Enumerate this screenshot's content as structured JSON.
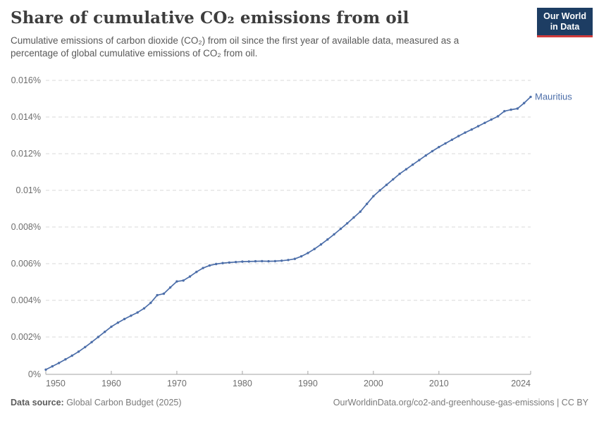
{
  "branding": {
    "logo_line1": "Our World",
    "logo_line2": "in Data",
    "logo_bg": "#1d3d63",
    "logo_stripe": "#cf3b3b"
  },
  "header": {
    "title": "Share of cumulative CO₂ emissions from oil",
    "subtitle_lines": [
      "Cumulative emissions of carbon dioxide (CO₂) from oil since the first year of available data, measured as a",
      "percentage of global cumulative emissions of CO₂ from oil."
    ]
  },
  "chart_data": {
    "type": "line",
    "title": "Share of cumulative CO₂ emissions from oil",
    "entity": "Mauritius",
    "xlim": [
      1950,
      2024
    ],
    "ylim": [
      0,
      0.016
    ],
    "grid": true,
    "legend_position": "end-of-line",
    "x_ticks": [
      1950,
      1960,
      1970,
      1980,
      1990,
      2000,
      2010,
      2024
    ],
    "x_tick_labels": [
      "1950",
      "1960",
      "1970",
      "1980",
      "1990",
      "2000",
      "2010",
      "2024"
    ],
    "y_ticks": [
      0,
      0.002,
      0.004,
      0.006,
      0.008,
      0.01,
      0.012,
      0.014,
      0.016
    ],
    "y_tick_labels": [
      "0%",
      "0.002%",
      "0.004%",
      "0.006%",
      "0.008%",
      "0.01%",
      "0.012%",
      "0.014%",
      "0.016%"
    ],
    "series": [
      {
        "name": "Mauritius",
        "color": "#4c6ea9",
        "x": [
          1950,
          1951,
          1952,
          1953,
          1954,
          1955,
          1956,
          1957,
          1958,
          1959,
          1960,
          1961,
          1962,
          1963,
          1964,
          1965,
          1966,
          1967,
          1968,
          1969,
          1970,
          1971,
          1972,
          1973,
          1974,
          1975,
          1976,
          1977,
          1978,
          1979,
          1980,
          1981,
          1982,
          1983,
          1984,
          1985,
          1986,
          1987,
          1988,
          1989,
          1990,
          1991,
          1992,
          1993,
          1994,
          1995,
          1996,
          1997,
          1998,
          1999,
          2000,
          2001,
          2002,
          2003,
          2004,
          2005,
          2006,
          2007,
          2008,
          2009,
          2010,
          2011,
          2012,
          2013,
          2014,
          2015,
          2016,
          2017,
          2018,
          2019,
          2020,
          2021,
          2022,
          2023,
          2024
        ],
        "values": [
          0.00022,
          0.0004,
          0.00058,
          0.00078,
          0.00098,
          0.0012,
          0.00145,
          0.00172,
          0.002,
          0.00228,
          0.00256,
          0.00278,
          0.00298,
          0.00316,
          0.00334,
          0.00356,
          0.00386,
          0.00428,
          0.00436,
          0.0047,
          0.00503,
          0.00508,
          0.0053,
          0.00555,
          0.00576,
          0.0059,
          0.00598,
          0.00603,
          0.00606,
          0.00609,
          0.00611,
          0.00612,
          0.00613,
          0.00614,
          0.00613,
          0.00614,
          0.00616,
          0.0062,
          0.00626,
          0.0064,
          0.00658,
          0.0068,
          0.00705,
          0.00732,
          0.0076,
          0.0079,
          0.0082,
          0.00852,
          0.00884,
          0.00926,
          0.00968,
          0.01,
          0.0103,
          0.0106,
          0.0109,
          0.01115,
          0.0114,
          0.01165,
          0.0119,
          0.01214,
          0.01236,
          0.01256,
          0.01276,
          0.01296,
          0.01315,
          0.01332,
          0.0135,
          0.01368,
          0.01386,
          0.01404,
          0.01432,
          0.0144,
          0.01446,
          0.01476,
          0.0151
        ]
      }
    ]
  },
  "footer": {
    "source_label": "Data source:",
    "source_value": " Global Carbon Budget (2025)",
    "url": "OurWorldinData.org/co2-and-greenhouse-gas-emissions | CC BY"
  },
  "colors": {
    "line": "#4c6ea9",
    "gridline": "#dadada",
    "axis": "#a3a3a3",
    "tick_text": "#6e6e6e"
  }
}
